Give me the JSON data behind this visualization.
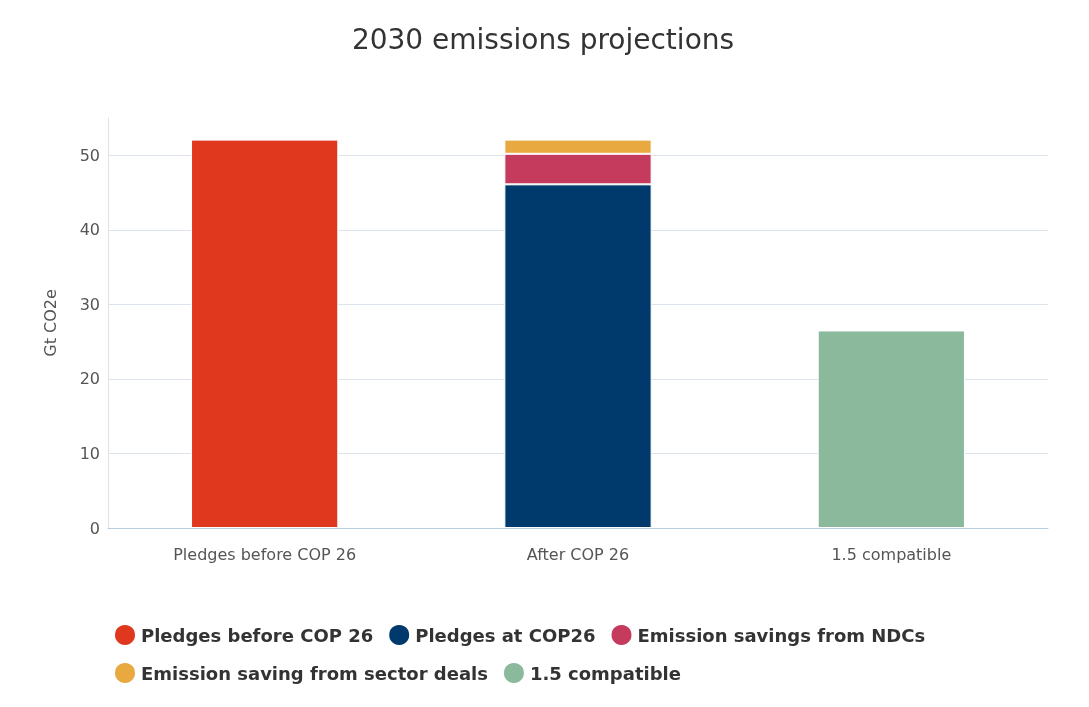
{
  "chart_data": {
    "type": "bar",
    "title": "2030 emissions projections",
    "ylabel": "Gt CO2e",
    "categories": [
      "Pledges before COP 26",
      "After COP 26",
      "1.5 compatible"
    ],
    "stacked": true,
    "ylim": [
      0,
      55
    ],
    "yticks": [
      0,
      10,
      20,
      30,
      40,
      50
    ],
    "grid": "y",
    "legend": "bottom",
    "series": [
      {
        "name": "Pledges before COP 26",
        "color": "#e0381f",
        "values": [
          52.1,
          null,
          null
        ]
      },
      {
        "name": "Pledges at COP26",
        "color": "#003a6c",
        "values": [
          null,
          46.1,
          null
        ]
      },
      {
        "name": "Emission savings from NDCs",
        "color": "#c43b5e",
        "values": [
          null,
          4.1,
          null
        ]
      },
      {
        "name": "Emission saving from sector deals",
        "color": "#e8a940",
        "values": [
          null,
          1.9,
          null
        ]
      },
      {
        "name": "1.5 compatible",
        "color": "#8aba9b",
        "values": [
          null,
          null,
          26.5
        ]
      }
    ]
  }
}
